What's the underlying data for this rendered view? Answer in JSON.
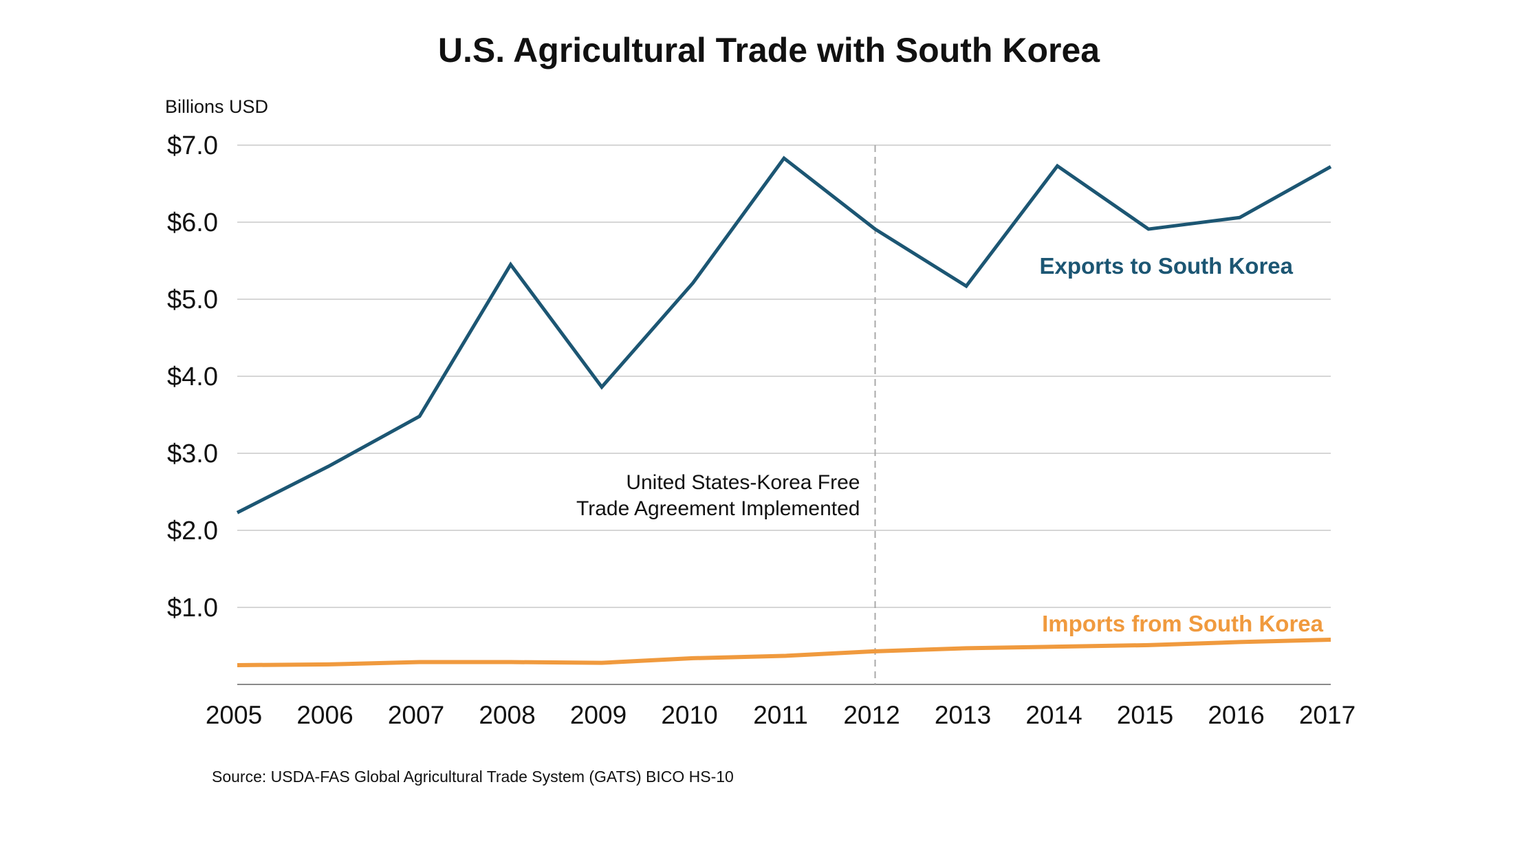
{
  "chart_data": {
    "type": "line",
    "title": "U.S. Agricultural Trade with South Korea",
    "ylabel": "Billions USD",
    "xlabel": "",
    "x": [
      "2005",
      "2006",
      "2007",
      "2008",
      "2009",
      "2010",
      "2011",
      "2012",
      "2013",
      "2014",
      "2015",
      "2016",
      "2017"
    ],
    "ylim": [
      0,
      7
    ],
    "yticks": [
      {
        "value": 1,
        "label": "$1.0"
      },
      {
        "value": 2,
        "label": "$2.0"
      },
      {
        "value": 3,
        "label": "$3.0"
      },
      {
        "value": 4,
        "label": "$4.0"
      },
      {
        "value": 5,
        "label": "$5.0"
      },
      {
        "value": 6,
        "label": "$6.0"
      },
      {
        "value": 7,
        "label": "$7.0"
      }
    ],
    "grid": true,
    "series": [
      {
        "name": "Exports to South Korea",
        "color": "#1c5673",
        "values": [
          2.23,
          2.83,
          3.48,
          5.45,
          3.86,
          5.21,
          6.83,
          5.91,
          5.17,
          6.73,
          5.91,
          6.06,
          6.72
        ]
      },
      {
        "name": "Imports from South Korea",
        "color": "#f09a3e",
        "values": [
          0.25,
          0.26,
          0.29,
          0.29,
          0.28,
          0.34,
          0.37,
          0.43,
          0.47,
          0.49,
          0.51,
          0.55,
          0.58
        ]
      }
    ],
    "annotations": [
      {
        "x": "2012",
        "kind": "vertical-dashed-line",
        "lines": [
          "United States-Korea Free",
          "Trade Agreement Implemented"
        ]
      }
    ],
    "source": "Source:  USDA-FAS Global Agricultural Trade System (GATS) BICO HS-10"
  }
}
